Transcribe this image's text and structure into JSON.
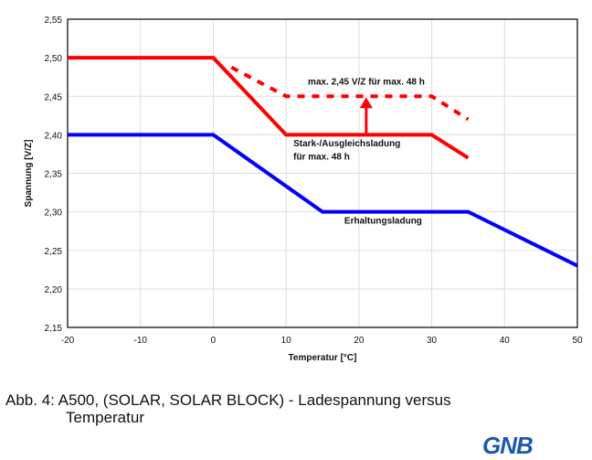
{
  "chart_data": {
    "type": "line",
    "xlabel": "Temperatur [°C]",
    "ylabel": "Spannung [V/Z]",
    "xlim": [
      -20,
      50
    ],
    "ylim": [
      2.15,
      2.55
    ],
    "xticks": [
      "-20",
      "-10",
      "0",
      "10",
      "20",
      "30",
      "40",
      "50"
    ],
    "yticks": [
      "2,15",
      "2,20",
      "2,25",
      "2,30",
      "2,35",
      "2,40",
      "2,45",
      "2,50",
      "2,55"
    ],
    "grid": true,
    "series": [
      {
        "color": "#ff0000",
        "style": "solid",
        "x": [
          -20,
          0,
          10,
          30,
          35
        ],
        "y": [
          2.5,
          2.5,
          2.4,
          2.4,
          2.37
        ]
      },
      {
        "color": "#ff0000",
        "style": "dashed",
        "x": [
          2.5,
          10,
          30,
          35
        ],
        "y": [
          2.4875,
          2.45,
          2.45,
          2.42
        ]
      },
      {
        "color": "#0000ff",
        "style": "solid",
        "x": [
          -20,
          0,
          15,
          35,
          50
        ],
        "y": [
          2.4,
          2.4,
          2.3,
          2.3,
          2.23
        ]
      }
    ],
    "arrow": {
      "x": 21,
      "from": 2.4,
      "to": 2.45,
      "color": "#ff0000"
    },
    "annotations": [
      {
        "text": "max. 2,45 V/Z für max. 48 h",
        "x": 13,
        "y": 2.465
      },
      {
        "text": "Stark-/Ausgleichsladung",
        "x": 11,
        "y": 2.385
      },
      {
        "text": "für max. 48 h",
        "x": 11,
        "y": 2.368
      },
      {
        "text": "Erhaltungsladung",
        "x": 18,
        "y": 2.285
      }
    ]
  },
  "caption": {
    "line1": "Abb. 4: A500, (SOLAR, SOLAR BLOCK) - Ladespannung versus",
    "line2": "Temperatur"
  },
  "logo": "GNB"
}
